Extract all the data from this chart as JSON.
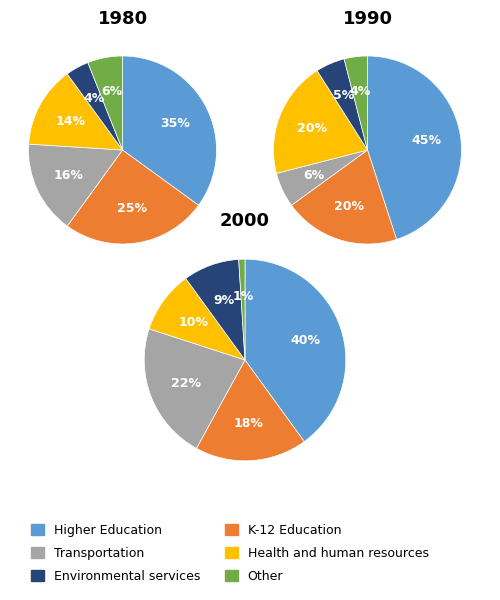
{
  "title_1980": "1980",
  "title_1990": "1990",
  "title_2000": "2000",
  "categories": [
    "Higher Education",
    "K-12 Education",
    "Transportation",
    "Health and human resources",
    "Environmental services",
    "Other"
  ],
  "colors": [
    "#5B9BD5",
    "#ED7D31",
    "#A5A5A5",
    "#FFC000",
    "#264478",
    "#70AD47"
  ],
  "data_1980": [
    35,
    25,
    16,
    14,
    4,
    6
  ],
  "data_1990": [
    45,
    20,
    6,
    20,
    5,
    4
  ],
  "data_2000": [
    40,
    18,
    22,
    10,
    9,
    1
  ],
  "labels_1980": [
    "35%",
    "25%",
    "16%",
    "14%",
    "4%",
    "6%"
  ],
  "labels_1990": [
    "45%",
    "20%",
    "6%",
    "20%",
    "5%",
    "4%"
  ],
  "labels_2000": [
    "40%",
    "18%",
    "22%",
    "10%",
    "9%",
    "1%"
  ],
  "startangle": 90,
  "label_color": "white",
  "label_fontsize": 9,
  "title_fontsize": 13,
  "legend_fontsize": 9,
  "fig_width": 5.0,
  "fig_height": 6.0,
  "legend_order": [
    0,
    2,
    4,
    1,
    3,
    5
  ]
}
